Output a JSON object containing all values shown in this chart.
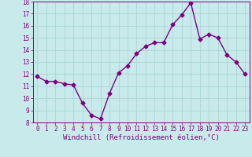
{
  "x": [
    0,
    1,
    2,
    3,
    4,
    5,
    6,
    7,
    8,
    9,
    10,
    11,
    12,
    13,
    14,
    15,
    16,
    17,
    18,
    19,
    20,
    21,
    22,
    23
  ],
  "y": [
    11.8,
    11.4,
    11.4,
    11.2,
    11.1,
    9.6,
    8.6,
    8.3,
    10.4,
    12.1,
    12.7,
    13.7,
    14.3,
    14.6,
    14.6,
    16.1,
    16.9,
    17.9,
    14.9,
    15.3,
    15.0,
    13.6,
    13.0,
    12.0
  ],
  "line_color": "#800080",
  "marker": "D",
  "marker_size": 2.5,
  "line_width": 1.0,
  "bg_color": "#c8eaea",
  "grid_color": "#b0dada",
  "xlabel": "Windchill (Refroidissement éolien,°C)",
  "xlabel_color": "#800080",
  "tick_color": "#800080",
  "ylim": [
    8,
    18
  ],
  "xlim": [
    -0.5,
    23.5
  ],
  "yticks": [
    8,
    9,
    10,
    11,
    12,
    13,
    14,
    15,
    16,
    17,
    18
  ],
  "xticks": [
    0,
    1,
    2,
    3,
    4,
    5,
    6,
    7,
    8,
    9,
    10,
    11,
    12,
    13,
    14,
    15,
    16,
    17,
    18,
    19,
    20,
    21,
    22,
    23
  ],
  "tick_fontsize": 5.5,
  "xlabel_fontsize": 6.5
}
